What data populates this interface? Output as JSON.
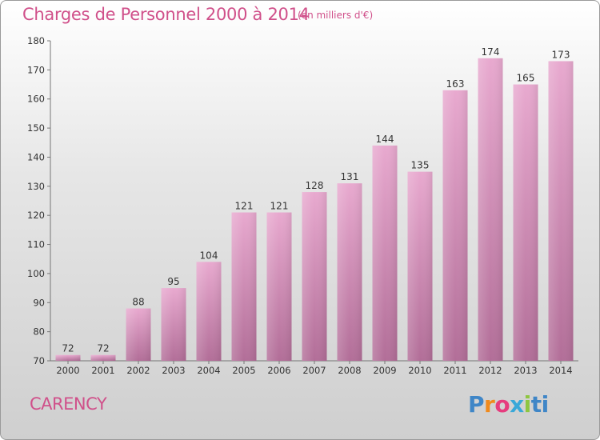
{
  "title": "Charges de Personnel 2000 à 2014",
  "unit_note": "(en milliers d'€)",
  "commune": "CARENCY",
  "logo": [
    "P",
    "r",
    "o",
    "x",
    "i",
    "ti"
  ],
  "colors": {
    "accent": "#d0508a",
    "bar_top": "#e8a9cf",
    "bar_bottom": "#b26e98"
  },
  "chart_data": {
    "type": "bar",
    "title": "Charges de Personnel 2000 à 2014",
    "categories": [
      "2000",
      "2001",
      "2002",
      "2003",
      "2004",
      "2005",
      "2006",
      "2007",
      "2008",
      "2009",
      "2010",
      "2011",
      "2012",
      "2013",
      "2014"
    ],
    "values": [
      72,
      72,
      88,
      95,
      104,
      121,
      121,
      128,
      131,
      144,
      135,
      163,
      174,
      165,
      173
    ],
    "ylim": [
      70,
      180
    ],
    "yticks": [
      70,
      80,
      90,
      100,
      110,
      120,
      130,
      140,
      150,
      160,
      170,
      180
    ],
    "xlabel": "",
    "ylabel": "",
    "data_labels": true,
    "grid": false
  }
}
